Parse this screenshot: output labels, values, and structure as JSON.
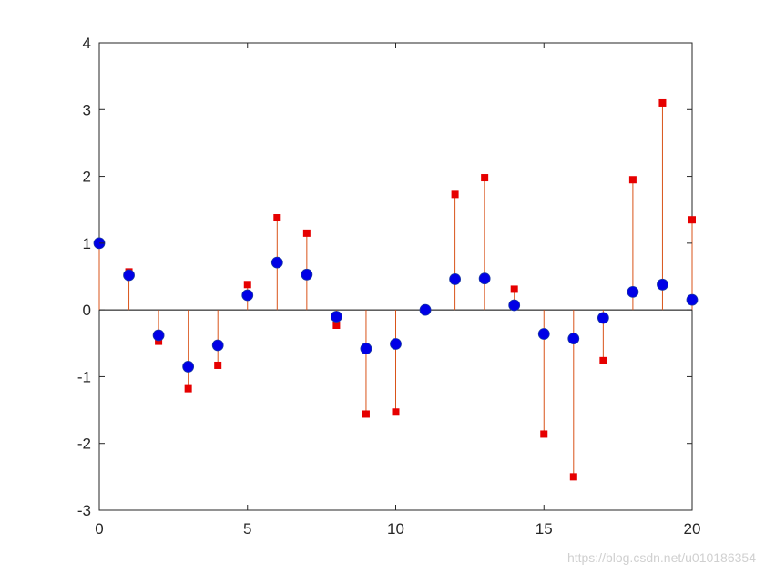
{
  "chart_data": {
    "type": "stem",
    "xlim": [
      0,
      20
    ],
    "ylim": [
      -3,
      4
    ],
    "xticks": [
      0,
      5,
      10,
      15,
      20
    ],
    "yticks": [
      -3,
      -2,
      -1,
      0,
      1,
      2,
      3,
      4
    ],
    "grid": false,
    "x": [
      0,
      1,
      2,
      3,
      4,
      5,
      6,
      7,
      8,
      9,
      10,
      11,
      12,
      13,
      14,
      15,
      16,
      17,
      18,
      19,
      20
    ],
    "series": [
      {
        "marker": "square",
        "color": "#e60000",
        "stem_color": "#d95319",
        "values": [
          1.0,
          0.57,
          -0.47,
          -1.18,
          -0.83,
          0.38,
          1.38,
          1.15,
          -0.23,
          -1.56,
          -1.53,
          0.0,
          1.73,
          1.98,
          0.31,
          -1.86,
          -2.5,
          -0.76,
          1.95,
          3.1,
          1.35
        ]
      },
      {
        "marker": "circle",
        "color": "#0000e6",
        "values": [
          1.0,
          0.52,
          -0.38,
          -0.85,
          -0.53,
          0.22,
          0.71,
          0.53,
          -0.1,
          -0.58,
          -0.51,
          0.0,
          0.46,
          0.47,
          0.07,
          -0.36,
          -0.43,
          -0.12,
          0.27,
          0.38,
          0.15
        ]
      }
    ]
  },
  "watermark": "https://blog.csdn.net/u010186354"
}
